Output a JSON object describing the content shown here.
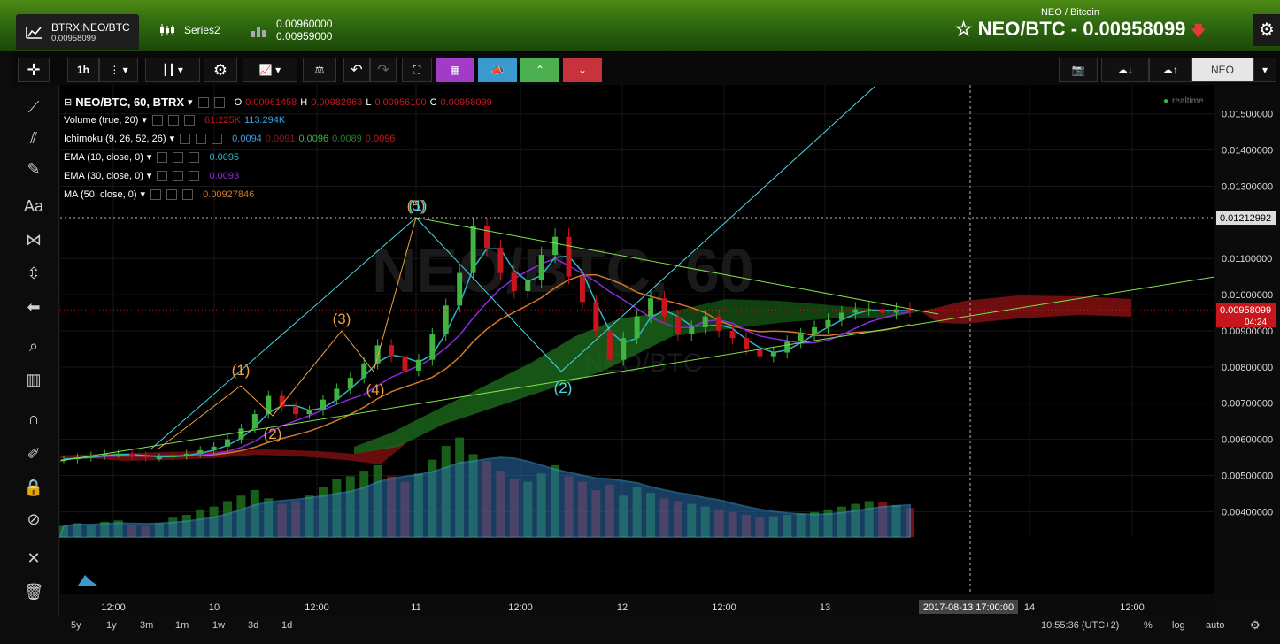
{
  "tabs": [
    {
      "label": "BTRX:NEO/BTC",
      "sub": "0.00958099",
      "icon": "area-chart-icon"
    },
    {
      "label": "Series2",
      "sub": "",
      "icon": "candles-icon"
    },
    {
      "label": "0.00960000",
      "sub": "0.00959000",
      "icon": "bars-icon"
    }
  ],
  "header": {
    "subtitle": "NEO / Bitcoin",
    "title": "NEO/BTC - 0.00958099",
    "direction": "down",
    "star": "☆"
  },
  "toolbar": {
    "interval": "1h",
    "neo_label": "NEO"
  },
  "legend": {
    "main": {
      "label": "NEO/BTC, 60, BTRX",
      "o_label": "O",
      "o": "0.00961458",
      "h_label": "H",
      "h": "0.00982963",
      "l_label": "L",
      "l": "0.00956100",
      "c_label": "C",
      "c": "0.00958099"
    },
    "volume": {
      "label": "Volume (true, 20)",
      "v1": "61.225K",
      "v2": "113.294K"
    },
    "ichimoku": {
      "label": "Ichimoku (9, 26, 52, 26)",
      "v1": "0.0094",
      "v2": "0.0091",
      "v3": "0.0096",
      "v4": "0.0089",
      "v5": "0.0096"
    },
    "ema10": {
      "label": "EMA (10, close, 0)",
      "v": "0.0095"
    },
    "ema30": {
      "label": "EMA (30, close, 0)",
      "v": "0.0093"
    },
    "ma50": {
      "label": "MA (50, close, 0)",
      "v": "0.00927846"
    }
  },
  "realtime": "realtime",
  "watermark": {
    "pair": "NEO/BTC, 60",
    "sub": "NEO/BTC"
  },
  "y_axis": {
    "ticks": [
      "0.01500000",
      "0.01400000",
      "0.01300000",
      "0.01100000",
      "0.01000000",
      "0.00900000",
      "0.00800000",
      "0.00700000",
      "0.00600000",
      "0.00500000",
      "0.00400000"
    ],
    "crosshair": "0.01212992",
    "price": "0.00958099",
    "countdown": "04:24"
  },
  "x_axis": {
    "ticks": [
      "12:00",
      "10",
      "12:00",
      "11",
      "12:00",
      "12",
      "12:00",
      "13",
      "14",
      "12:00"
    ],
    "crosshair": "2017-08-13 17:00:00"
  },
  "waves": {
    "orange": [
      "(1)",
      "(2)",
      "(3)",
      "(4)",
      "(5)"
    ],
    "cyan": [
      "(1)",
      "(2)"
    ]
  },
  "bottom": {
    "ranges": [
      "5y",
      "1y",
      "3m",
      "1m",
      "1w",
      "3d",
      "1d"
    ],
    "time": "10:55:36 (UTC+2)",
    "percent": "%",
    "log": "log",
    "auto": "auto"
  },
  "colors": {
    "up": "#3fb43f",
    "down": "#c8161d",
    "ema10": "#2bb8c8",
    "ema30": "#8a2be2",
    "ma50": "#d07a2a",
    "trend": "#7fe34a",
    "wave_cyan": "#4fd6e8",
    "wave_orange": "#f0a040"
  },
  "chart_data": {
    "type": "candlestick",
    "title": "NEO/BTC, 60, BTRX",
    "close": [
      0.00545,
      0.0055,
      0.00555,
      0.0056,
      0.0056,
      0.00555,
      0.0055,
      0.0055,
      0.00555,
      0.0056,
      0.0057,
      0.0058,
      0.006,
      0.0063,
      0.0067,
      0.0072,
      0.0069,
      0.0067,
      0.0068,
      0.0071,
      0.0074,
      0.0077,
      0.0081,
      0.0086,
      0.0083,
      0.0079,
      0.0082,
      0.0089,
      0.0097,
      0.0106,
      0.0119,
      0.0113,
      0.0106,
      0.0101,
      0.0104,
      0.0111,
      0.0116,
      0.0105,
      0.0098,
      0.009,
      0.0082,
      0.0088,
      0.0094,
      0.0099,
      0.0094,
      0.0089,
      0.0091,
      0.0094,
      0.009,
      0.0088,
      0.0085,
      0.0083,
      0.0084,
      0.0087,
      0.0089,
      0.0091,
      0.0093,
      0.0095,
      0.0096,
      0.0096,
      0.0095,
      0.0096,
      0.00958
    ],
    "ylim": [
      0.0033,
      0.0158
    ]
  }
}
